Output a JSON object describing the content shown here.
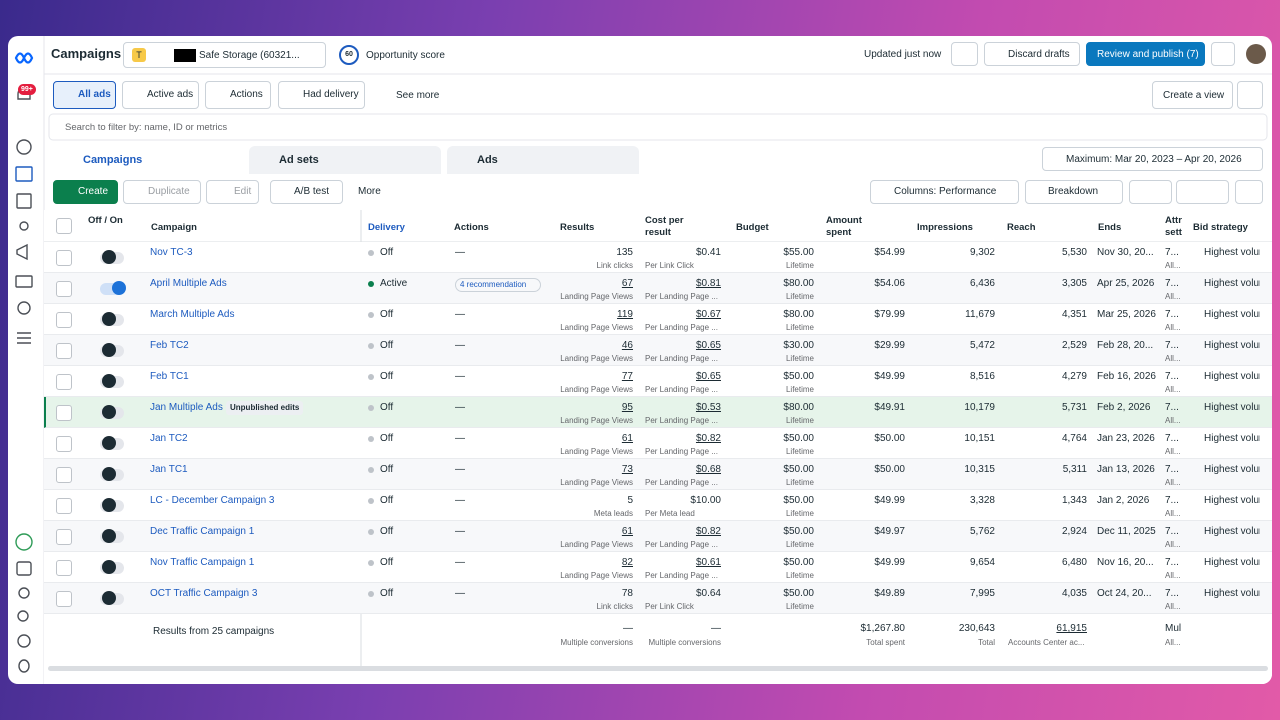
{
  "header": {
    "title": "Campaigns",
    "badge": "T",
    "account": "Safe Storage (60321...",
    "score": "60",
    "score_label": "Opportunity score",
    "updated": "Updated just now",
    "discard": "Discard drafts",
    "publish": "Review and publish (7)"
  },
  "notifications": "99+",
  "filters": {
    "items": [
      "All ads",
      "Active ads",
      "Actions",
      "Had delivery"
    ],
    "see_more": "See more",
    "create_view": "Create a view"
  },
  "search": "Search to filter by: name, ID or metrics",
  "tabs": [
    "Campaigns",
    "Ad sets",
    "Ads"
  ],
  "date_range": "Maximum: Mar 20, 2023 – Apr 20, 2026",
  "toolbar": {
    "create": "Create",
    "duplicate": "Duplicate",
    "edit": "Edit",
    "ab_test": "A/B test",
    "more": "More",
    "columns": "Columns: Performance",
    "breakdown": "Breakdown"
  },
  "table": {
    "columns": [
      "Off / On",
      "Campaign",
      "Delivery",
      "Actions",
      "Results",
      "Cost per result",
      "Budget",
      "Amount spent",
      "Impressions",
      "Reach",
      "Ends",
      "Attr sett",
      "Bid strategy"
    ],
    "rows": [
      {
        "name": "Nov TC-3",
        "delivery": "Off",
        "actions": "—",
        "results": "135",
        "results_sub": "Link clicks",
        "cost": "$0.41",
        "cost_sub": "Per Link Click",
        "budget": "$55.00",
        "budget_sub": "Lifetime",
        "spent": "$54.99",
        "impressions": "9,302",
        "reach": "5,530",
        "ends": "Nov 30, 20...",
        "attr": "7...",
        "attr_sub": "All...",
        "bid": "Highest volume"
      },
      {
        "name": "April Multiple Ads",
        "delivery": "Active",
        "actions": "4 recommendation",
        "results": "67",
        "results_sub": "Landing Page Views",
        "cost": "$0.81",
        "cost_sub": "Per Landing Page ...",
        "budget": "$80.00",
        "budget_sub": "Lifetime",
        "spent": "$54.06",
        "impressions": "6,436",
        "reach": "3,305",
        "ends": "Apr 25, 2026",
        "attr": "7...",
        "attr_sub": "All...",
        "bid": "Highest volume"
      },
      {
        "name": "March Multiple Ads",
        "delivery": "Off",
        "actions": "—",
        "results": "119",
        "results_sub": "Landing Page Views",
        "cost": "$0.67",
        "cost_sub": "Per Landing Page ...",
        "budget": "$80.00",
        "budget_sub": "Lifetime",
        "spent": "$79.99",
        "impressions": "11,679",
        "reach": "4,351",
        "ends": "Mar 25, 2026",
        "attr": "7...",
        "attr_sub": "All...",
        "bid": "Highest volume"
      },
      {
        "name": "Feb TC2",
        "delivery": "Off",
        "actions": "—",
        "results": "46",
        "results_sub": "Landing Page Views",
        "cost": "$0.65",
        "cost_sub": "Per Landing Page ...",
        "budget": "$30.00",
        "budget_sub": "Lifetime",
        "spent": "$29.99",
        "impressions": "5,472",
        "reach": "2,529",
        "ends": "Feb 28, 20...",
        "attr": "7...",
        "attr_sub": "All...",
        "bid": "Highest volume"
      },
      {
        "name": "Feb TC1",
        "delivery": "Off",
        "actions": "—",
        "results": "77",
        "results_sub": "Landing Page Views",
        "cost": "$0.65",
        "cost_sub": "Per Landing Page ...",
        "budget": "$50.00",
        "budget_sub": "Lifetime",
        "spent": "$49.99",
        "impressions": "8,516",
        "reach": "4,279",
        "ends": "Feb 16, 2026",
        "attr": "7...",
        "attr_sub": "All...",
        "bid": "Highest volume"
      },
      {
        "name": "Jan Multiple Ads",
        "badge": "Unpublished edits",
        "delivery": "Off",
        "actions": "—",
        "results": "95",
        "results_sub": "Landing Page Views",
        "cost": "$0.53",
        "cost_sub": "Per Landing Page ...",
        "budget": "$80.00",
        "budget_sub": "Lifetime",
        "spent": "$49.91",
        "impressions": "10,179",
        "reach": "5,731",
        "ends": "Feb 2, 2026",
        "attr": "7...",
        "attr_sub": "All...",
        "bid": "Highest volume"
      },
      {
        "name": "Jan TC2",
        "delivery": "Off",
        "actions": "—",
        "results": "61",
        "results_sub": "Landing Page Views",
        "cost": "$0.82",
        "cost_sub": "Per Landing Page ...",
        "budget": "$50.00",
        "budget_sub": "Lifetime",
        "spent": "$50.00",
        "impressions": "10,151",
        "reach": "4,764",
        "ends": "Jan 23, 2026",
        "attr": "7...",
        "attr_sub": "All...",
        "bid": "Highest volume"
      },
      {
        "name": "Jan TC1",
        "delivery": "Off",
        "actions": "—",
        "results": "73",
        "results_sub": "Landing Page Views",
        "cost": "$0.68",
        "cost_sub": "Per Landing Page ...",
        "budget": "$50.00",
        "budget_sub": "Lifetime",
        "spent": "$50.00",
        "impressions": "10,315",
        "reach": "5,311",
        "ends": "Jan 13, 2026",
        "attr": "7...",
        "attr_sub": "All...",
        "bid": "Highest volume"
      },
      {
        "name": "LC - December Campaign 3",
        "delivery": "Off",
        "actions": "—",
        "results": "5",
        "results_sub": "Meta leads",
        "cost": "$10.00",
        "cost_sub": "Per Meta lead",
        "budget": "$50.00",
        "budget_sub": "Lifetime",
        "spent": "$49.99",
        "impressions": "3,328",
        "reach": "1,343",
        "ends": "Jan 2, 2026",
        "attr": "7...",
        "attr_sub": "All...",
        "bid": "Highest volume"
      },
      {
        "name": "Dec Traffic Campaign 1",
        "delivery": "Off",
        "actions": "—",
        "results": "61",
        "results_sub": "Landing Page Views",
        "cost": "$0.82",
        "cost_sub": "Per Landing Page ...",
        "budget": "$50.00",
        "budget_sub": "Lifetime",
        "spent": "$49.97",
        "impressions": "5,762",
        "reach": "2,924",
        "ends": "Dec 11, 2025",
        "attr": "7...",
        "attr_sub": "All...",
        "bid": "Highest volume"
      },
      {
        "name": "Nov Traffic Campaign 1",
        "delivery": "Off",
        "actions": "—",
        "results": "82",
        "results_sub": "Landing Page Views",
        "cost": "$0.61",
        "cost_sub": "Per Landing Page ...",
        "budget": "$50.00",
        "budget_sub": "Lifetime",
        "spent": "$49.99",
        "impressions": "9,654",
        "reach": "6,480",
        "ends": "Nov 16, 20...",
        "attr": "7...",
        "attr_sub": "All...",
        "bid": "Highest volume"
      },
      {
        "name": "OCT Traffic Campaign 3",
        "delivery": "Off",
        "actions": "—",
        "results": "78",
        "results_sub": "Link clicks",
        "cost": "$0.64",
        "cost_sub": "Per Link Click",
        "budget": "$50.00",
        "budget_sub": "Lifetime",
        "spent": "$49.89",
        "impressions": "7,995",
        "reach": "4,035",
        "ends": "Oct 24, 20...",
        "attr": "7...",
        "attr_sub": "All...",
        "bid": "Highest volume"
      }
    ],
    "footer": {
      "summary": "Results from 25 campaigns",
      "results": "—",
      "results_sub": "Multiple conversions",
      "cost": "—",
      "cost_sub": "Multiple conversions",
      "spent": "$1,267.80",
      "spent_sub": "Total spent",
      "impressions": "230,643",
      "impressions_sub": "Total",
      "reach": "61,915",
      "reach_sub": "Accounts Center ac...",
      "attr": "Mul",
      "attr_sub": "All..."
    }
  }
}
